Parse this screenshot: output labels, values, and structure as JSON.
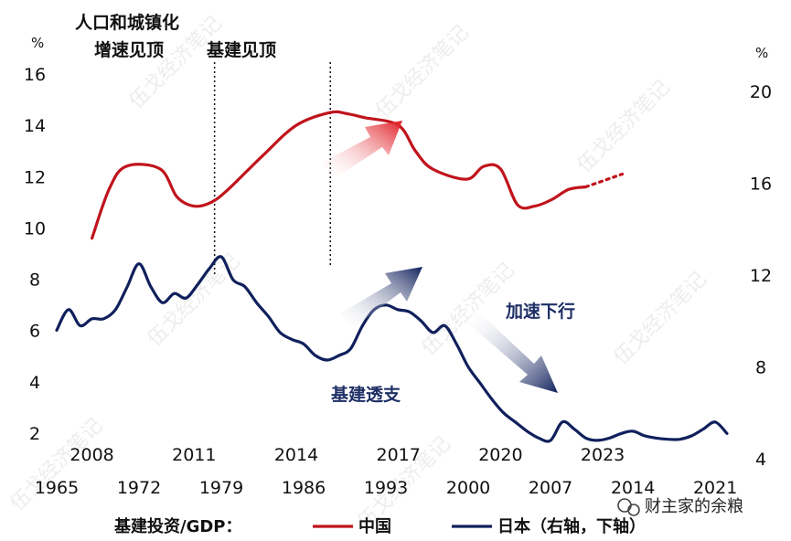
{
  "chart_data": {
    "type": "line",
    "left_axis": {
      "unit": "%",
      "ticks": [
        2,
        4,
        6,
        8,
        10,
        12,
        14,
        16
      ],
      "ylim": [
        2,
        16
      ]
    },
    "right_axis": {
      "unit": "%",
      "ticks": [
        4,
        8,
        12,
        16,
        20
      ],
      "ylim": [
        4,
        22
      ]
    },
    "top_x_axis": {
      "ticks": [
        "2008",
        "2011",
        "2014",
        "2017",
        "2020",
        "2023"
      ],
      "xlim": [
        2007.5,
        2027
      ]
    },
    "bottom_x_axis": {
      "ticks": [
        "1965",
        "1972",
        "1979",
        "1986",
        "1993",
        "2000",
        "2007",
        "2014",
        "2021"
      ],
      "xlim": [
        1965,
        2022
      ]
    },
    "legend": {
      "title": "基建投资/GDP："
    },
    "series": [
      {
        "name": "中国",
        "color": "#c0141c",
        "axis": "left/top",
        "x": [
          2008,
          2008.5,
          2009,
          2010,
          2010.5,
          2011,
          2011.5,
          2012,
          2013,
          2014,
          2015,
          2015.5,
          2016,
          2017,
          2017.5,
          2018,
          2019,
          2019.5,
          2020,
          2020.5,
          2021,
          2021.5,
          2022,
          2022.5
        ],
        "values": [
          9.6,
          11.5,
          12.4,
          12.3,
          11.2,
          10.85,
          11.0,
          11.5,
          12.8,
          14.0,
          14.5,
          14.45,
          14.3,
          14.0,
          13.0,
          12.3,
          11.9,
          12.4,
          12.3,
          10.9,
          10.85,
          11.1,
          11.5,
          11.6
        ]
      },
      {
        "name": "日本（右轴，下轴）",
        "color": "#10205c",
        "axis": "right/bottom",
        "x": [
          1965,
          1966,
          1967,
          1968,
          1969,
          1970,
          1971,
          1972,
          1973,
          1974,
          1975,
          1976,
          1977,
          1978,
          1979,
          1980,
          1981,
          1982,
          1983,
          1984,
          1985,
          1986,
          1987,
          1988,
          1989,
          1990,
          1991,
          1992,
          1993,
          1994,
          1995,
          1996,
          1997,
          1998,
          1999,
          2000,
          2001,
          2002,
          2003,
          2004,
          2005,
          2006,
          2007,
          2008,
          2009,
          2010,
          2011,
          2012,
          2013,
          2014,
          2015,
          2016,
          2017,
          2018,
          2019,
          2020,
          2021,
          2022
        ],
        "values": [
          9.6,
          10.5,
          9.8,
          10.1,
          10.1,
          10.5,
          11.5,
          12.5,
          11.5,
          10.8,
          11.2,
          11.0,
          11.6,
          12.3,
          12.8,
          11.8,
          11.5,
          10.8,
          10.2,
          9.5,
          9.2,
          9.0,
          8.5,
          8.3,
          8.5,
          8.8,
          9.8,
          10.5,
          10.7,
          10.5,
          10.4,
          10.0,
          9.5,
          9.8,
          9.0,
          8.0,
          7.3,
          6.6,
          6.0,
          5.6,
          5.2,
          4.9,
          4.8,
          5.6,
          5.3,
          4.9,
          4.8,
          4.9,
          5.1,
          5.2,
          5.0,
          4.9,
          4.85,
          4.85,
          5.0,
          5.3,
          5.6,
          5.1
        ]
      }
    ],
    "annotations": [
      {
        "line1": "人口和城镇化",
        "line2": "增速见顶",
        "x": 2011.6
      },
      {
        "line1": "基建见顶",
        "x": 2015
      },
      {
        "text": "基建透支"
      },
      {
        "text": "加速下行"
      }
    ]
  },
  "watermark": "伍戈经济笔记",
  "wechat_label": "财主家的余粮"
}
